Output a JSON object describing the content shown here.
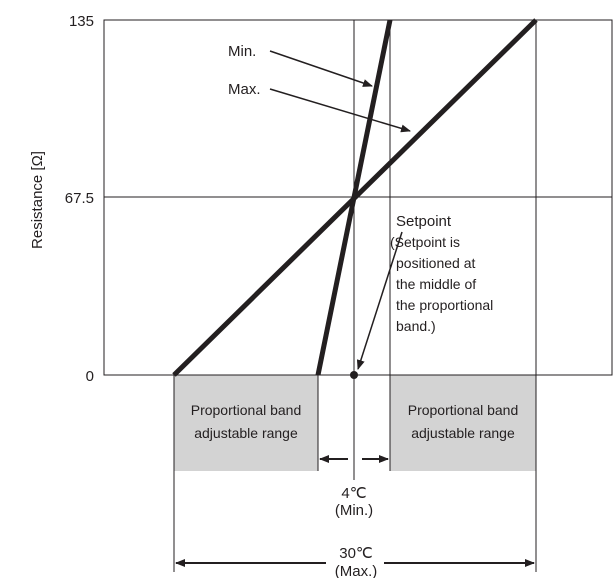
{
  "y_axis": {
    "label": "Resistance [Ω]",
    "ticks": [
      "135",
      "67.5",
      "0"
    ]
  },
  "lines": {
    "min_label": "Min.",
    "max_label": "Max."
  },
  "setpoint": {
    "title": "Setpoint",
    "note": [
      "(Setpoint is",
      "positioned at",
      "the middle of",
      "the proportional",
      "band.)"
    ]
  },
  "bands": {
    "left": [
      "Proportional band",
      "adjustable range"
    ],
    "right": [
      "Proportional band",
      "adjustable range"
    ],
    "fill_color": "#d3d3d3"
  },
  "dimensions": {
    "min": [
      "4℃",
      "(Min.)"
    ],
    "max": [
      "30℃",
      "(Max.)"
    ]
  },
  "colors": {
    "line": "#231f20",
    "band": "#d3d3d3"
  }
}
